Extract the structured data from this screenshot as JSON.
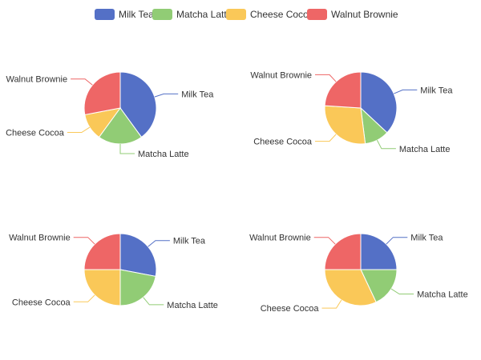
{
  "chart_data": {
    "type": "pie",
    "colors": {
      "Milk Tea": "#5470c6",
      "Matcha Latte": "#91cc75",
      "Cheese Cocoa": "#fac858",
      "Walnut Brownie": "#ee6666"
    },
    "legend": {
      "position": "top-center",
      "items": [
        "Milk Tea",
        "Matcha Latte",
        "Cheese Cocoa",
        "Walnut Brownie"
      ]
    },
    "charts": [
      {
        "categories": [
          "Milk Tea",
          "Matcha Latte",
          "Cheese Cocoa",
          "Walnut Brownie"
        ],
        "values": [
          40,
          20,
          12,
          28
        ]
      },
      {
        "categories": [
          "Milk Tea",
          "Matcha Latte",
          "Cheese Cocoa",
          "Walnut Brownie"
        ],
        "values": [
          37,
          11,
          28,
          24
        ]
      },
      {
        "categories": [
          "Milk Tea",
          "Matcha Latte",
          "Cheese Cocoa",
          "Walnut Brownie"
        ],
        "values": [
          28,
          22,
          25,
          25
        ]
      },
      {
        "categories": [
          "Milk Tea",
          "Matcha Latte",
          "Cheese Cocoa",
          "Walnut Brownie"
        ],
        "values": [
          25,
          18,
          32,
          25
        ]
      }
    ]
  }
}
